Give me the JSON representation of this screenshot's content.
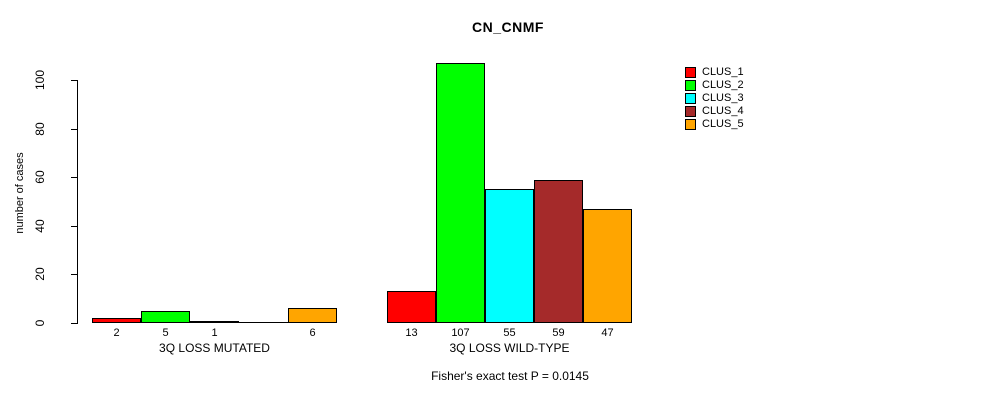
{
  "title": "CN_CNMF",
  "footer": "Fisher's exact test P = 0.0145",
  "legend": {
    "items": [
      {
        "label": "CLUS_1",
        "color": "#FF0000"
      },
      {
        "label": "CLUS_2",
        "color": "#00FF00"
      },
      {
        "label": "CLUS_3",
        "color": "#00FFFF"
      },
      {
        "label": "CLUS_4",
        "color": "#A52A2A"
      },
      {
        "label": "CLUS_5",
        "color": "#FFA500"
      }
    ]
  },
  "chart_data": {
    "type": "bar",
    "title": "CN_CNMF",
    "ylabel": "number of cases",
    "xlabel": "",
    "categories": [
      "3Q LOSS MUTATED",
      "3Q LOSS WILD-TYPE"
    ],
    "series": [
      {
        "name": "CLUS_1",
        "color": "#FF0000",
        "values": [
          2,
          13
        ]
      },
      {
        "name": "CLUS_2",
        "color": "#00FF00",
        "values": [
          5,
          107
        ]
      },
      {
        "name": "CLUS_3",
        "color": "#00FFFF",
        "values": [
          1,
          55
        ]
      },
      {
        "name": "CLUS_4",
        "color": "#A52A2A",
        "values": [
          0,
          59
        ]
      },
      {
        "name": "CLUS_5",
        "color": "#FFA500",
        "values": [
          6,
          47
        ]
      }
    ],
    "bar_value_labels": [
      [
        "2",
        "5",
        "1",
        "",
        "6"
      ],
      [
        "13",
        "107",
        "55",
        "59",
        "47"
      ]
    ],
    "yticks": [
      0,
      20,
      40,
      60,
      80,
      100
    ],
    "ylim": [
      0,
      107
    ],
    "grid": false,
    "legend_position": "right",
    "annotation": "Fisher's exact test P = 0.0145",
    "bar_border_color": "#000000",
    "axis_color": "#000000"
  }
}
